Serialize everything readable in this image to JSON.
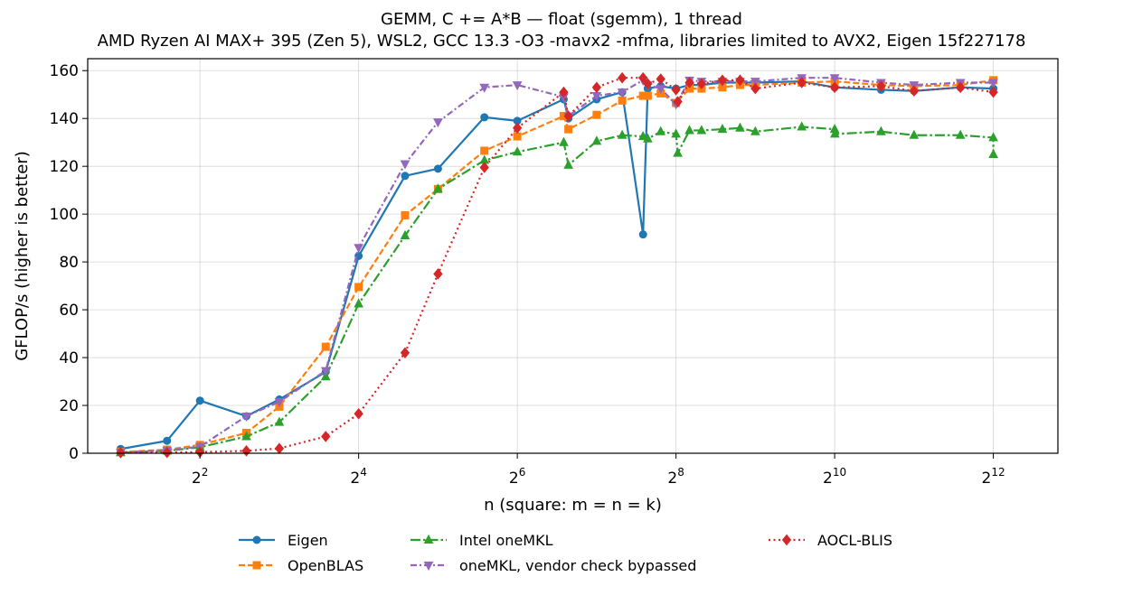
{
  "chart_data": {
    "type": "line",
    "title": "GEMM, C += A*B — float (sgemm), 1 thread",
    "subtitle": "AMD Ryzen AI MAX+ 395 (Zen 5), WSL2, GCC 13.3 -O3 -mavx2 -mfma, libraries limited to AVX2, Eigen 15f227178",
    "xlabel": "n (square: m = n = k)",
    "ylabel": "GFLOP/s (higher is better)",
    "xscale": "log2",
    "xlim": [
      1.5,
      7200
    ],
    "ylim": [
      0,
      165
    ],
    "xticks": [
      {
        "base": "2",
        "exp": "2",
        "value": 4
      },
      {
        "base": "2",
        "exp": "4",
        "value": 16
      },
      {
        "base": "2",
        "exp": "6",
        "value": 64
      },
      {
        "base": "2",
        "exp": "8",
        "value": 256
      },
      {
        "base": "2",
        "exp": "10",
        "value": 1024
      },
      {
        "base": "2",
        "exp": "12",
        "value": 4096
      }
    ],
    "yticks": [
      "0",
      "20",
      "40",
      "60",
      "80",
      "100",
      "120",
      "140",
      "160"
    ],
    "grid": true,
    "legend_position": "below",
    "series": [
      {
        "name": "Eigen",
        "color": "#1f77b4",
        "marker": "circle",
        "dash": "solid",
        "points": [
          [
            2,
            1.8
          ],
          [
            3,
            5.2
          ],
          [
            4,
            22
          ],
          [
            6,
            15.5
          ],
          [
            8,
            22.5
          ],
          [
            12,
            34
          ],
          [
            16,
            82.5
          ],
          [
            24,
            116
          ],
          [
            32,
            119
          ],
          [
            48,
            140.5
          ],
          [
            64,
            139
          ],
          [
            96,
            148
          ],
          [
            100,
            140
          ],
          [
            128,
            148
          ],
          [
            160,
            151
          ],
          [
            192,
            91.5
          ],
          [
            200,
            152.5
          ],
          [
            224,
            153.5
          ],
          [
            256,
            152.5
          ],
          [
            288,
            154
          ],
          [
            320,
            154
          ],
          [
            384,
            155
          ],
          [
            448,
            155
          ],
          [
            512,
            155
          ],
          [
            768,
            155.5
          ],
          [
            1024,
            153
          ],
          [
            1536,
            152
          ],
          [
            2048,
            151.5
          ],
          [
            3072,
            153
          ],
          [
            4096,
            152.5
          ]
        ]
      },
      {
        "name": "OpenBLAS",
        "color": "#ff7f0e",
        "marker": "square",
        "dash": "dashed",
        "points": [
          [
            2,
            0.5
          ],
          [
            3,
            1.5
          ],
          [
            4,
            3.5
          ],
          [
            6,
            8.5
          ],
          [
            8,
            19.5
          ],
          [
            12,
            44.5
          ],
          [
            16,
            69.5
          ],
          [
            24,
            99.5
          ],
          [
            32,
            110.5
          ],
          [
            48,
            126.5
          ],
          [
            64,
            132.5
          ],
          [
            96,
            141
          ],
          [
            100,
            135.5
          ],
          [
            128,
            141.5
          ],
          [
            160,
            147.5
          ],
          [
            192,
            149.5
          ],
          [
            200,
            149.5
          ],
          [
            224,
            150.5
          ],
          [
            256,
            146.5
          ],
          [
            288,
            152.5
          ],
          [
            320,
            152.5
          ],
          [
            384,
            153
          ],
          [
            448,
            154
          ],
          [
            512,
            154
          ],
          [
            768,
            155
          ],
          [
            1024,
            155.5
          ],
          [
            1536,
            154
          ],
          [
            2048,
            153.5
          ],
          [
            3072,
            154
          ],
          [
            4096,
            156
          ]
        ]
      },
      {
        "name": "Intel oneMKL",
        "color": "#2ca02c",
        "marker": "triangle-up",
        "dash": "dashdot",
        "points": [
          [
            2,
            0.3
          ],
          [
            3,
            1
          ],
          [
            4,
            2.5
          ],
          [
            6,
            7
          ],
          [
            8,
            13
          ],
          [
            12,
            32
          ],
          [
            16,
            62.5
          ],
          [
            24,
            91
          ],
          [
            32,
            110.5
          ],
          [
            48,
            122.5
          ],
          [
            64,
            126
          ],
          [
            96,
            130
          ],
          [
            100,
            120.5
          ],
          [
            128,
            130.5
          ],
          [
            160,
            133
          ],
          [
            192,
            132.5
          ],
          [
            200,
            131.5
          ],
          [
            224,
            134.5
          ],
          [
            256,
            133.5
          ],
          [
            260,
            125.5
          ],
          [
            288,
            135
          ],
          [
            320,
            135
          ],
          [
            384,
            135.5
          ],
          [
            448,
            136
          ],
          [
            512,
            134.5
          ],
          [
            768,
            136.5
          ],
          [
            1024,
            135.5
          ],
          [
            1026,
            133.5
          ],
          [
            1536,
            134.5
          ],
          [
            2048,
            133
          ],
          [
            3072,
            133
          ],
          [
            4096,
            132
          ],
          [
            4097,
            125
          ]
        ]
      },
      {
        "name": "oneMKL, vendor check bypassed",
        "color": "#9467bd",
        "marker": "triangle-down",
        "dash": "dashdot2",
        "points": [
          [
            2,
            0.4
          ],
          [
            3,
            1.2
          ],
          [
            4,
            2.8
          ],
          [
            6,
            15.5
          ],
          [
            8,
            21.5
          ],
          [
            12,
            34.5
          ],
          [
            16,
            86
          ],
          [
            24,
            121
          ],
          [
            32,
            138.5
          ],
          [
            48,
            153
          ],
          [
            64,
            154
          ],
          [
            96,
            149
          ],
          [
            100,
            141
          ],
          [
            128,
            149.5
          ],
          [
            160,
            151
          ],
          [
            192,
            156
          ],
          [
            200,
            154
          ],
          [
            224,
            152.5
          ],
          [
            256,
            146
          ],
          [
            288,
            156
          ],
          [
            320,
            155.5
          ],
          [
            384,
            155.5
          ],
          [
            448,
            155.5
          ],
          [
            512,
            155.5
          ],
          [
            768,
            157
          ],
          [
            1024,
            157
          ],
          [
            1536,
            155
          ],
          [
            2048,
            154
          ],
          [
            3072,
            155
          ],
          [
            4096,
            155
          ]
        ]
      },
      {
        "name": "AOCL-BLIS",
        "color": "#d62728",
        "marker": "diamond",
        "dash": "dotted",
        "points": [
          [
            2,
            0.2
          ],
          [
            3,
            0.3
          ],
          [
            4,
            0.5
          ],
          [
            6,
            1
          ],
          [
            8,
            2
          ],
          [
            12,
            7
          ],
          [
            16,
            16.5
          ],
          [
            24,
            42
          ],
          [
            32,
            75
          ],
          [
            48,
            119.5
          ],
          [
            64,
            136
          ],
          [
            96,
            151
          ],
          [
            100,
            141
          ],
          [
            128,
            153
          ],
          [
            160,
            157
          ],
          [
            192,
            157
          ],
          [
            200,
            154.5
          ],
          [
            224,
            156.5
          ],
          [
            256,
            152
          ],
          [
            260,
            147
          ],
          [
            288,
            155
          ],
          [
            320,
            154.5
          ],
          [
            384,
            156
          ],
          [
            448,
            156
          ],
          [
            512,
            152.5
          ],
          [
            768,
            155
          ],
          [
            1024,
            153
          ],
          [
            1536,
            153.5
          ],
          [
            2048,
            151.5
          ],
          [
            3072,
            153
          ],
          [
            4096,
            151
          ]
        ]
      }
    ]
  }
}
